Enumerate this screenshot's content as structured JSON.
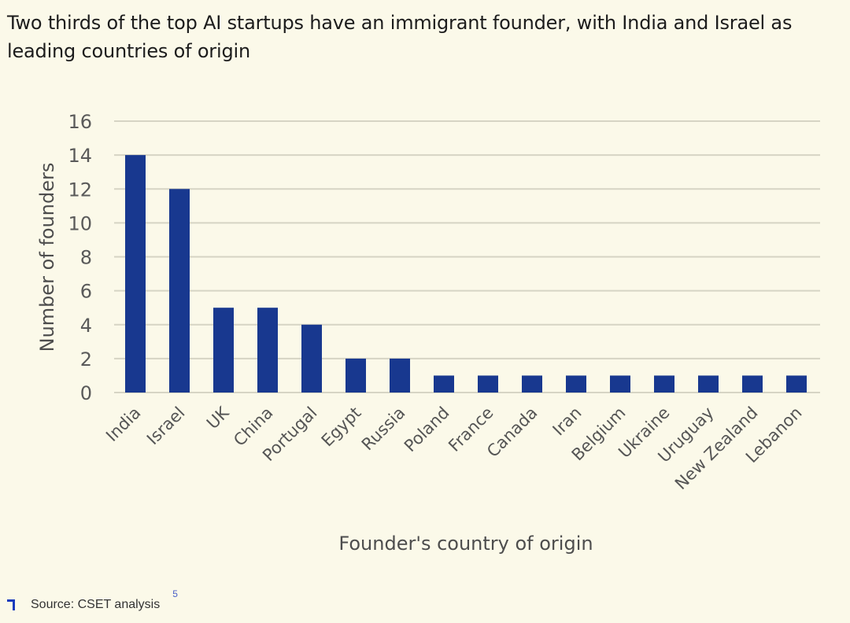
{
  "header": {
    "title": "Two thirds of the top AI startups have an immigrant founder, with India and Israel as leading countries of origin"
  },
  "footer": {
    "source": "Source: CSET analysis",
    "footnote": "5"
  },
  "colors": {
    "bar": "#18388f",
    "grid": "#d6d4c4",
    "background": "#fbf9e9",
    "accent": "#1a3bbd"
  },
  "chart_data": {
    "type": "bar",
    "title": "Two thirds of the top AI startups have an immigrant founder, with India and Israel as leading countries of origin",
    "xlabel": "Founder's country of origin",
    "ylabel": "Number of founders",
    "ylim": [
      0,
      16
    ],
    "yticks": [
      0,
      2,
      4,
      6,
      8,
      10,
      12,
      14,
      16
    ],
    "grid": true,
    "legend": "none",
    "categories": [
      "India",
      "Israel",
      "UK",
      "China",
      "Portugal",
      "Egypt",
      "Russia",
      "Poland",
      "France",
      "Canada",
      "Iran",
      "Belgium",
      "Ukraine",
      "Uruguay",
      "New Zealand",
      "Lebanon"
    ],
    "values": [
      14,
      12,
      5,
      5,
      4,
      2,
      2,
      1,
      1,
      1,
      1,
      1,
      1,
      1,
      1,
      1
    ]
  }
}
